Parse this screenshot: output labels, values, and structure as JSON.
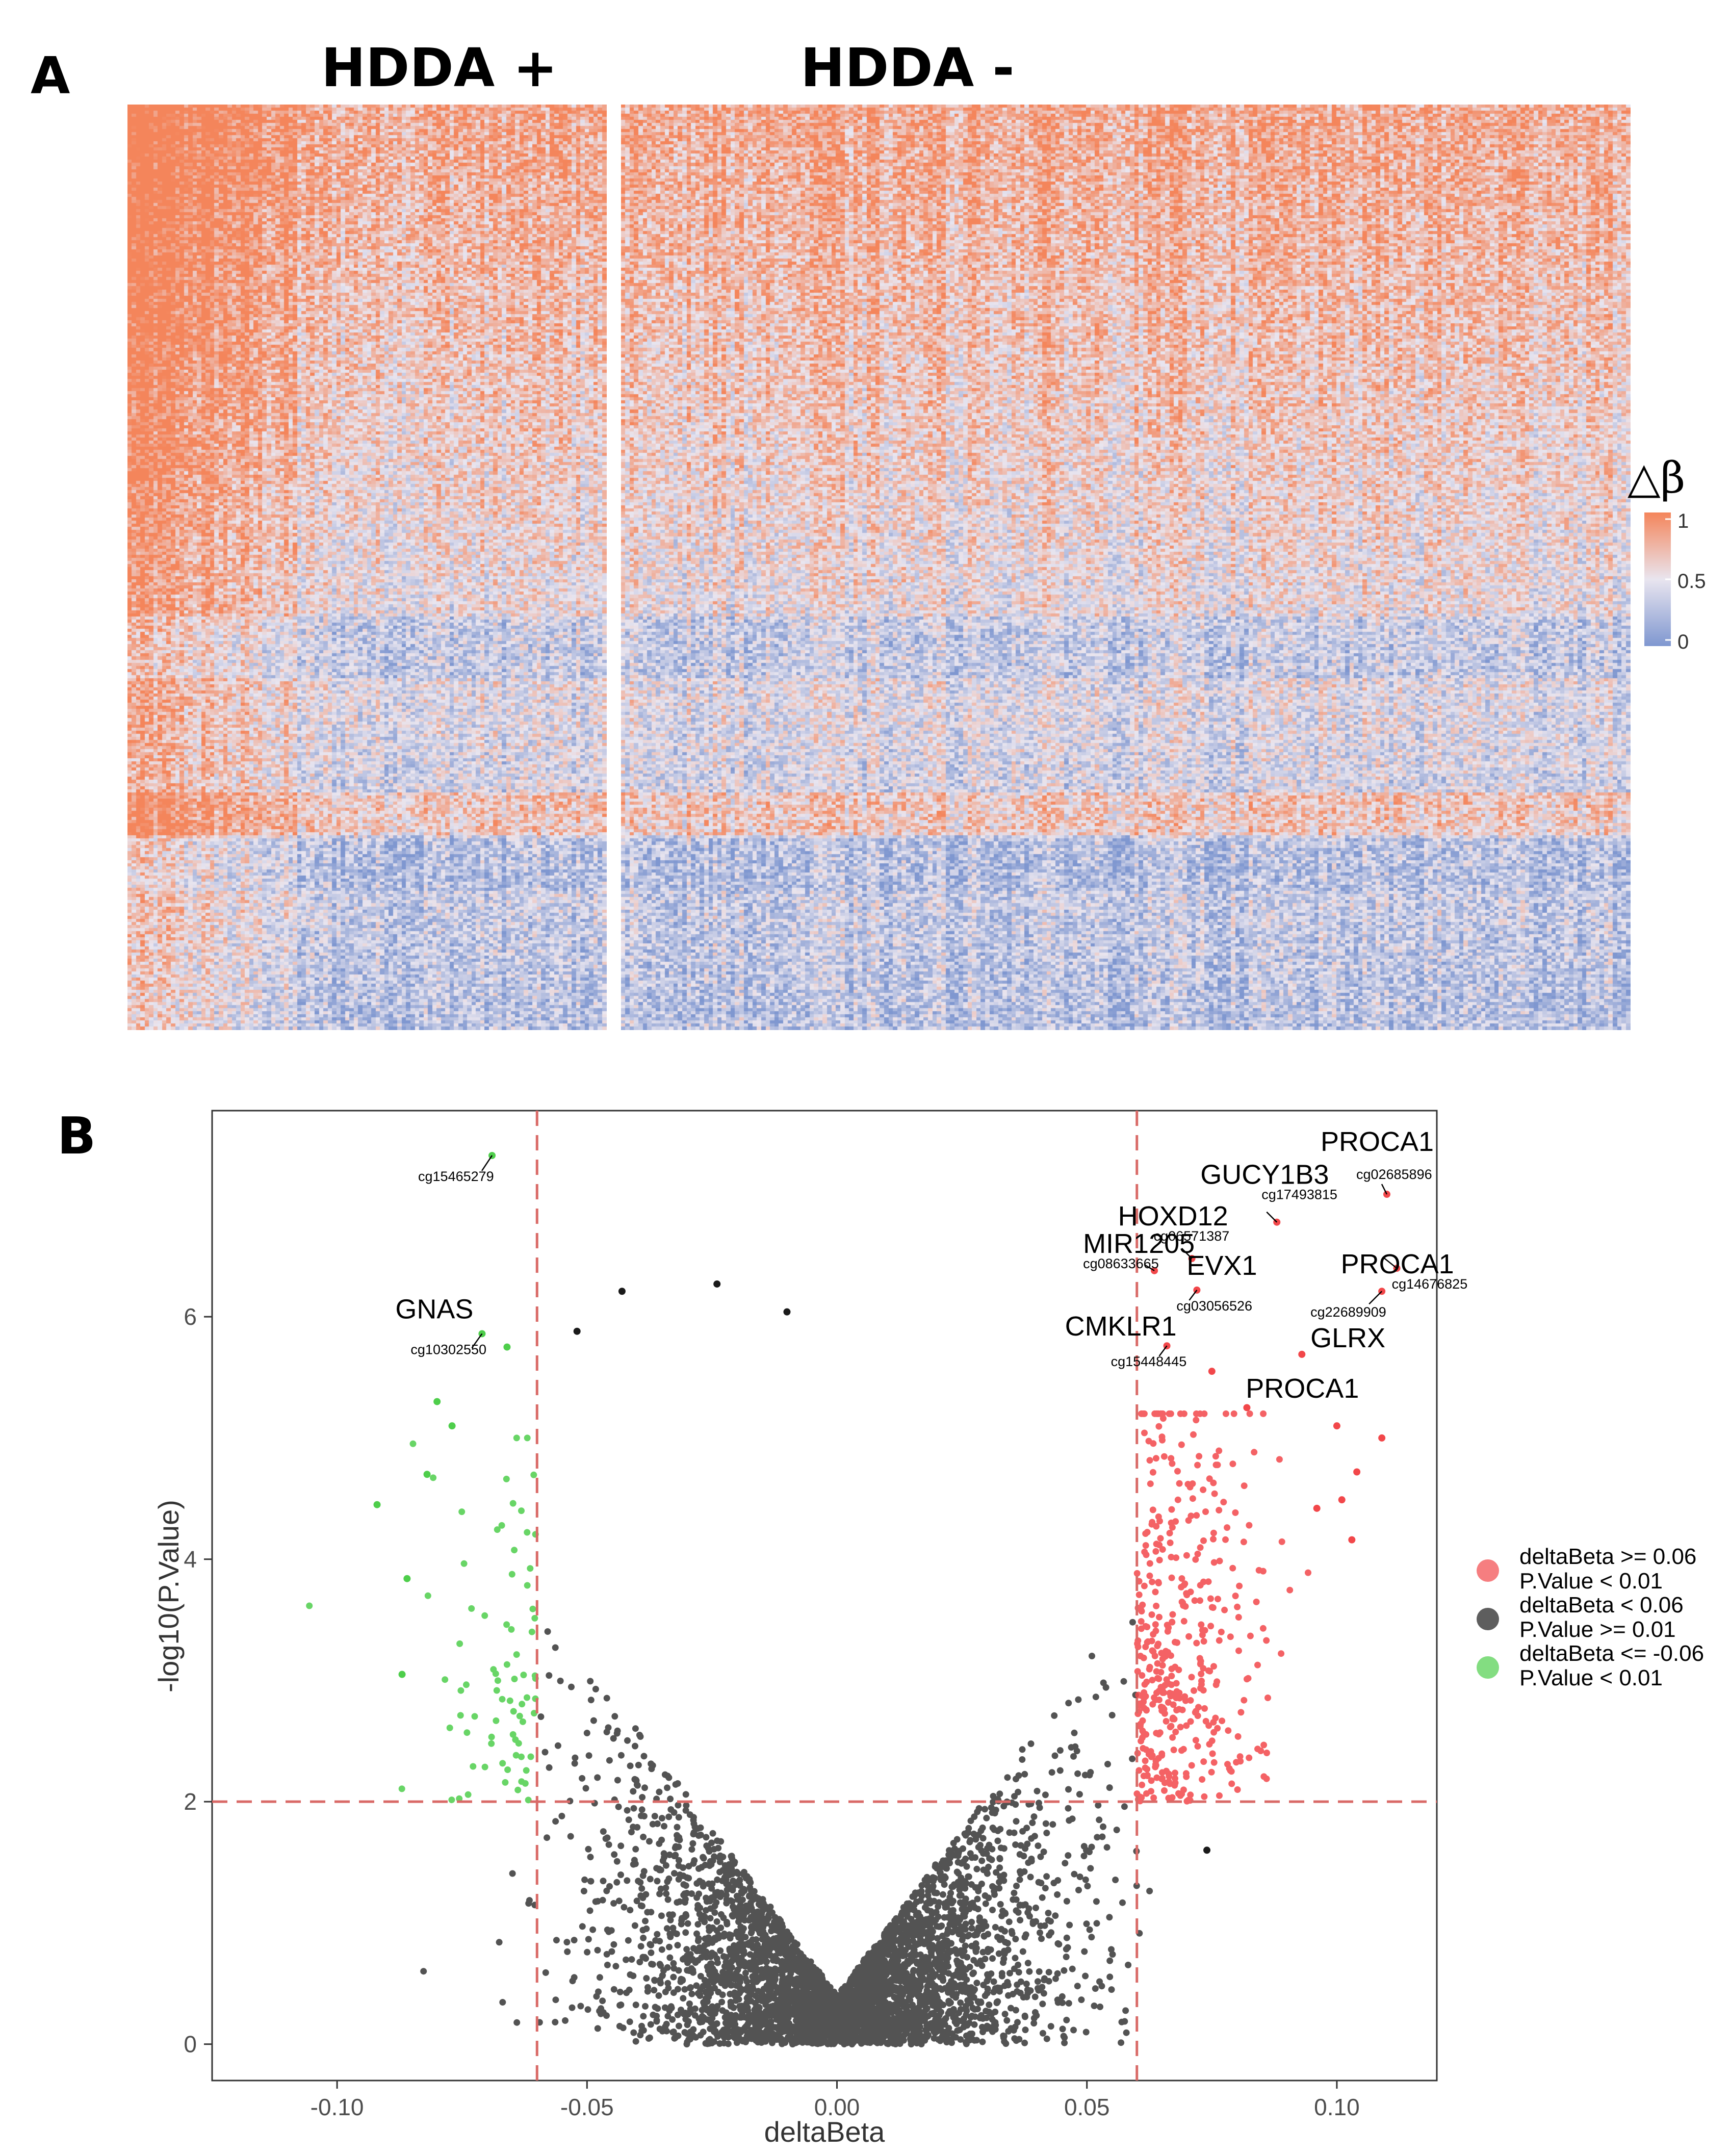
{
  "panel_a": {
    "label": "A",
    "group_left_title": "HDDA +",
    "group_right_title": "HDDA -",
    "colorbar": {
      "title": "△β",
      "ticks": [
        "1",
        "0.5",
        "0"
      ],
      "high_color": "#f4855b",
      "mid_color": "#e9e5ef",
      "low_color": "#7f97d0"
    }
  },
  "panel_b": {
    "label": "B"
  },
  "chart_data": {
    "type": "scatter",
    "xlabel": "deltaBeta",
    "ylabel": "-log10(P.Value)",
    "xlim": [
      -0.125,
      0.12
    ],
    "ylim": [
      -0.3,
      7.7
    ],
    "x_ticks": [
      -0.1,
      -0.05,
      0.0,
      0.05,
      0.1
    ],
    "x_tick_labels": [
      "-0.10",
      "-0.05",
      "0.00",
      "0.05",
      "0.10"
    ],
    "y_ticks": [
      0,
      2,
      4,
      6
    ],
    "y_tick_labels": [
      "0",
      "2",
      "4",
      "6"
    ],
    "thresholds": {
      "x": [
        -0.06,
        0.06
      ],
      "y": 2
    },
    "colors": {
      "up": "#f2474a",
      "ns": "#1a1a1a",
      "down": "#4ece4b",
      "threshold": "#d96a67"
    },
    "legend": [
      {
        "color": "#f2474a",
        "line1": "deltaBeta >= 0.06",
        "line2": "P.Value < 0.01"
      },
      {
        "color": "#1a1a1a",
        "line1": "deltaBeta < 0.06",
        "line2": "P.Value >= 0.01"
      },
      {
        "color": "#4ece4b",
        "line1": "deltaBeta <= -0.06",
        "line2": "P.Value < 0.01"
      }
    ],
    "labeled_points": [
      {
        "probe": "cg15465279",
        "gene": "",
        "x": -0.069,
        "y": 7.33,
        "group": "down"
      },
      {
        "probe": "cg10302550",
        "gene": "GNAS",
        "x": -0.071,
        "y": 5.86,
        "group": "down"
      },
      {
        "probe": "cg02685896",
        "gene": "PROCA1",
        "x": 0.11,
        "y": 7.01,
        "group": "up"
      },
      {
        "probe": "cg17493815",
        "gene": "GUCY1B3",
        "x": 0.088,
        "y": 6.78,
        "group": "up"
      },
      {
        "probe": "cg06571387",
        "gene": "HOXD12",
        "x": 0.071,
        "y": 6.48,
        "group": "up"
      },
      {
        "probe": "cg14676825",
        "gene": "PROCA1",
        "x": 0.112,
        "y": 6.4,
        "group": "up"
      },
      {
        "probe": "cg08633665",
        "gene": "MIR1205",
        "x": 0.0635,
        "y": 6.38,
        "group": "up"
      },
      {
        "probe": "cg03056526",
        "gene": "EVX1",
        "x": 0.072,
        "y": 6.22,
        "group": "up"
      },
      {
        "probe": "cg22689909",
        "gene": "GLRX",
        "x": 0.109,
        "y": 6.21,
        "group": "up"
      },
      {
        "probe": "cg15448445",
        "gene": "CMKLR1",
        "x": 0.066,
        "y": 5.76,
        "group": "up"
      },
      {
        "probe": "",
        "gene": "PROCA1",
        "x": 0.093,
        "y": 5.69,
        "group": "up"
      }
    ],
    "extreme_points": [
      {
        "x": -0.092,
        "y": 4.45,
        "group": "down"
      },
      {
        "x": -0.087,
        "y": 3.05,
        "group": "down"
      },
      {
        "x": -0.086,
        "y": 3.84,
        "group": "down"
      },
      {
        "x": -0.08,
        "y": 5.3,
        "group": "down"
      },
      {
        "x": -0.082,
        "y": 4.7,
        "group": "down"
      },
      {
        "x": -0.077,
        "y": 5.1,
        "group": "down"
      },
      {
        "x": -0.066,
        "y": 5.75,
        "group": "down"
      },
      {
        "x": -0.024,
        "y": 6.27,
        "group": "ns"
      },
      {
        "x": -0.043,
        "y": 6.21,
        "group": "ns"
      },
      {
        "x": -0.01,
        "y": 6.04,
        "group": "ns"
      },
      {
        "x": -0.052,
        "y": 5.88,
        "group": "ns"
      },
      {
        "x": 0.109,
        "y": 5.0,
        "group": "up"
      },
      {
        "x": 0.104,
        "y": 4.72,
        "group": "up"
      },
      {
        "x": 0.101,
        "y": 4.49,
        "group": "up"
      },
      {
        "x": 0.103,
        "y": 4.16,
        "group": "up"
      },
      {
        "x": 0.1,
        "y": 5.1,
        "group": "up"
      },
      {
        "x": 0.096,
        "y": 4.42,
        "group": "up"
      },
      {
        "x": 0.075,
        "y": 5.55,
        "group": "up"
      },
      {
        "x": 0.082,
        "y": 5.25,
        "group": "up"
      },
      {
        "x": 0.074,
        "y": 1.6,
        "group": "ns"
      }
    ]
  }
}
